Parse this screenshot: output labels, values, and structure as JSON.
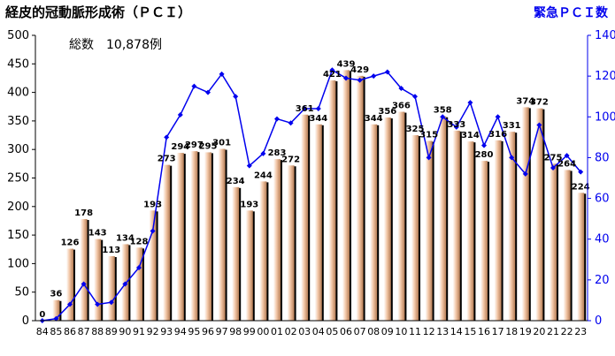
{
  "chart_data": {
    "type": "bar",
    "title": "経皮的冠動脈形成術（ＰＣＩ）",
    "secondary_title": "緊急ＰＣＩ数",
    "annotation": "総数　10,878例",
    "categories": [
      "84",
      "85",
      "86",
      "87",
      "88",
      "89",
      "90",
      "91",
      "92",
      "93",
      "94",
      "95",
      "96",
      "97",
      "98",
      "99",
      "00",
      "01",
      "02",
      "03",
      "04",
      "05",
      "06",
      "07",
      "08",
      "09",
      "10",
      "11",
      "12",
      "13",
      "14",
      "15",
      "16",
      "17",
      "18",
      "19",
      "20",
      "21",
      "22",
      "23"
    ],
    "series": [
      {
        "type": "bar",
        "axis": "left",
        "values": [
          0,
          36,
          126,
          178,
          143,
          113,
          134,
          128,
          193,
          273,
          294,
          297,
          295,
          301,
          234,
          193,
          244,
          283,
          272,
          361,
          344,
          421,
          439,
          429,
          344,
          356,
          366,
          325,
          315,
          358,
          333,
          314,
          280,
          316,
          331,
          374,
          372,
          275,
          264,
          224
        ]
      },
      {
        "type": "line",
        "axis": "right",
        "color": "#0000ee",
        "values": [
          0,
          1,
          8,
          18,
          8,
          9,
          18,
          26,
          44,
          90,
          101,
          115,
          112,
          121,
          110,
          76,
          82,
          99,
          97,
          104,
          104,
          123,
          119,
          118,
          120,
          122,
          114,
          110,
          80,
          100,
          95,
          107,
          86,
          100,
          80,
          72,
          96,
          75,
          81,
          73
        ]
      }
    ],
    "ylim_left": [
      0,
      500
    ],
    "yticks_left": [
      "0",
      "50",
      "100",
      "150",
      "200",
      "250",
      "300",
      "350",
      "400",
      "450",
      "500"
    ],
    "ylim_right": [
      0,
      140
    ],
    "yticks_right": [
      "0",
      "20",
      "40",
      "60",
      "80",
      "100",
      "120",
      "140"
    ],
    "grid": false,
    "legend": "none",
    "colors": {
      "bar_light": "#ffffff",
      "bar_mid": "#f2c6a6",
      "bar_dark": "#c08a62",
      "bar_shadow": "#000000",
      "line": "#0000ee",
      "axis_right": "#0000ee"
    }
  }
}
